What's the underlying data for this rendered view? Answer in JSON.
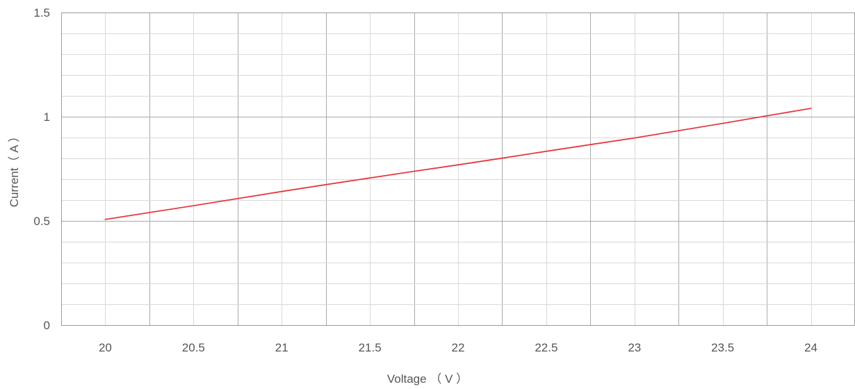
{
  "chart_data": {
    "type": "line",
    "title": "",
    "xlabel": "Voltage （ V ）",
    "ylabel": "Current（ A ）",
    "xlim": [
      19.75,
      24.25
    ],
    "ylim": [
      0,
      1.5
    ],
    "x_ticks": [
      20,
      20.5,
      21,
      21.5,
      22,
      22.5,
      23,
      23.5,
      24
    ],
    "x_tick_labels": [
      "20",
      "20.5",
      "21",
      "21.5",
      "22",
      "22.5",
      "23",
      "23.5",
      "24"
    ],
    "y_ticks": [
      0,
      0.5,
      1,
      1.5
    ],
    "y_tick_labels": [
      "0",
      "0.5",
      "1",
      "1.5"
    ],
    "grid": true,
    "series": [
      {
        "color": "#e8383d",
        "x": [
          20,
          20.25,
          20.5,
          20.75,
          21,
          21.25,
          21.5,
          21.75,
          22,
          22.25,
          22.5,
          22.75,
          23,
          23.25,
          23.5,
          23.75,
          24
        ],
        "y": [
          0.507,
          0.54,
          0.573,
          0.607,
          0.641,
          0.674,
          0.706,
          0.738,
          0.769,
          0.801,
          0.834,
          0.866,
          0.898,
          0.933,
          0.968,
          1.004,
          1.04
        ]
      }
    ]
  }
}
